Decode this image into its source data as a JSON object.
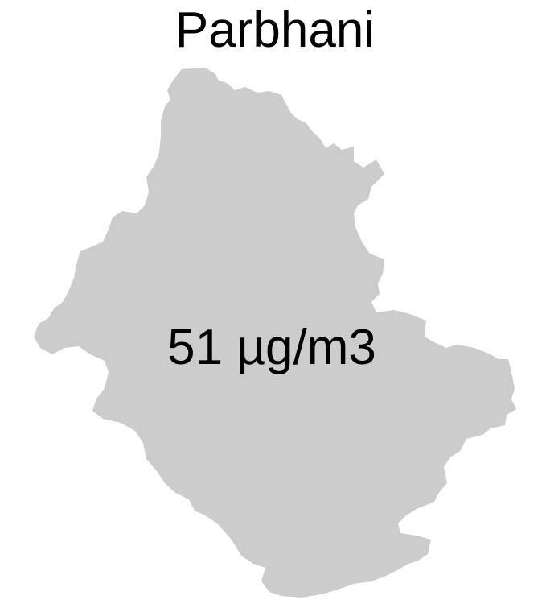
{
  "map": {
    "title": "Parbhani",
    "region_name": "Parbhani",
    "value_label": "51 µg/m3",
    "fill_color": "#cccccc",
    "text_color": "#000000",
    "background_color": "#ffffff"
  }
}
